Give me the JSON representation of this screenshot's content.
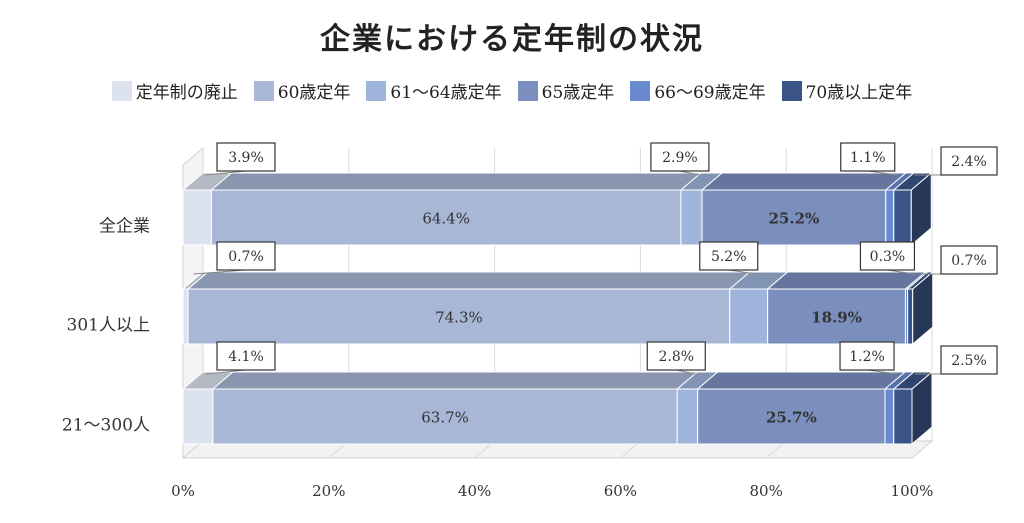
{
  "chart_data": {
    "type": "bar",
    "orientation": "horizontal",
    "stacked": "percent",
    "style": "3d",
    "title": "企業における定年制の状況",
    "xlim": [
      0,
      100
    ],
    "x_ticks": [
      "0%",
      "20%",
      "40%",
      "60%",
      "80%",
      "100%"
    ],
    "grid": true,
    "legend_position": "top",
    "categories": [
      "全企業",
      "301人以上",
      "21～300人"
    ],
    "series": [
      {
        "name": "定年制の廃止",
        "color": "#dce3ef",
        "values": [
          3.9,
          0.7,
          4.1
        ],
        "labels": [
          "3.9%",
          "0.7%",
          "4.1%"
        ]
      },
      {
        "name": "60歳定年",
        "color": "#a8b7d6",
        "values": [
          64.4,
          74.3,
          63.7
        ],
        "labels": [
          "64.4%",
          "74.3%",
          "63.7%"
        ]
      },
      {
        "name": "61～64歳定年",
        "color": "#9fb4db",
        "values": [
          2.9,
          5.2,
          2.8
        ],
        "labels": [
          "2.9%",
          "5.2%",
          "2.8%"
        ]
      },
      {
        "name": "65歳定年",
        "color": "#7b8fbf",
        "values": [
          25.2,
          18.9,
          25.7
        ],
        "labels": [
          "25.2%",
          "18.9%",
          "25.7%"
        ]
      },
      {
        "name": "66～69歳定年",
        "color": "#6a8ad0",
        "values": [
          1.1,
          0.3,
          1.2
        ],
        "labels": [
          "1.1%",
          "0.3%",
          "1.2%"
        ]
      },
      {
        "name": "70歳以上定年",
        "color": "#3b5487",
        "values": [
          2.4,
          0.7,
          2.5
        ],
        "labels": [
          "2.4%",
          "0.7%",
          "2.5%"
        ]
      }
    ]
  }
}
